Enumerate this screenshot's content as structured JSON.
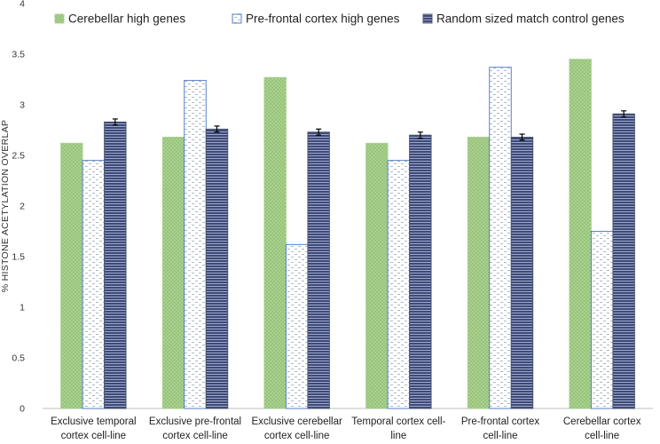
{
  "chart_data": {
    "type": "bar",
    "title": "",
    "xlabel": "",
    "ylabel": "% HISTONE ACETYLATION OVERLAP",
    "ylim": [
      0,
      4
    ],
    "yticks": [
      "0",
      "0.5",
      "1",
      "1.5",
      "2",
      "2.5",
      "3",
      "3.5",
      "4"
    ],
    "grid": false,
    "legend_position": "top",
    "categories": [
      [
        "Exclusive temporal",
        "cortex cell-line"
      ],
      [
        "Exclusive pre-frontal",
        "cortex cell-line"
      ],
      [
        "Exclusive cerebellar",
        "cortex cell-line"
      ],
      [
        "Temporal cortex cell-",
        "line"
      ],
      [
        "Pre-frontal cortex",
        "cell-line"
      ],
      [
        "Cerebellar cortex",
        "cell-line"
      ]
    ],
    "series": [
      {
        "name": "Cerebellar high genes",
        "color": "#a9d18e",
        "pattern": "dots",
        "values": [
          2.62,
          2.68,
          3.27,
          2.62,
          2.68,
          3.45
        ]
      },
      {
        "name": "Pre-frontal cortex high genes",
        "color": "#4472c4",
        "pattern": "dashes",
        "values": [
          2.45,
          3.24,
          1.62,
          2.45,
          3.37,
          1.75
        ]
      },
      {
        "name": "Random sized match control genes",
        "color": "#44546a",
        "pattern": "stripes",
        "values": [
          2.83,
          2.76,
          2.73,
          2.7,
          2.68,
          2.91
        ],
        "errors": [
          0.03,
          0.03,
          0.03,
          0.03,
          0.03,
          0.03
        ]
      }
    ]
  }
}
